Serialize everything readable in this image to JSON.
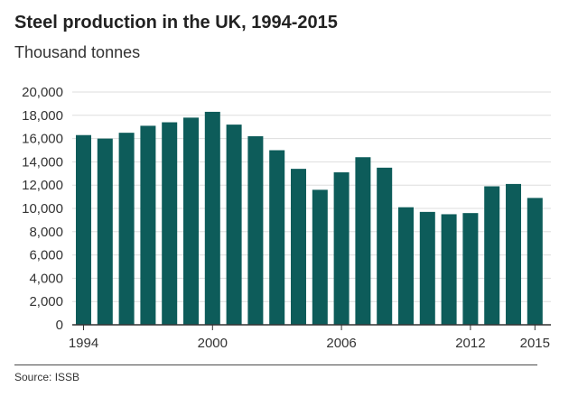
{
  "title": "Steel production in the UK, 1994-2015",
  "subtitle": "Thousand tonnes",
  "source": "Source: ISSB",
  "colors": {
    "bar": "#0d5c5a",
    "grid": "#dddddd",
    "axis": "#333333"
  },
  "chart_data": {
    "type": "bar",
    "title": "Steel production in the UK, 1994-2015",
    "subtitle": "Thousand tonnes",
    "categories": [
      "1994",
      "1995",
      "1996",
      "1997",
      "1998",
      "1999",
      "2000",
      "2001",
      "2002",
      "2003",
      "2004",
      "2005",
      "2006",
      "2007",
      "2008",
      "2009",
      "2010",
      "2011",
      "2012",
      "2013",
      "2014",
      "2015"
    ],
    "values": [
      16300,
      16000,
      16500,
      17100,
      17400,
      17800,
      18300,
      17200,
      16200,
      15000,
      13400,
      11600,
      13100,
      14400,
      13500,
      10100,
      9700,
      9500,
      9600,
      11900,
      12100,
      10900
    ],
    "x_tick_labels": [
      "1994",
      "2000",
      "2006",
      "2012",
      "2015"
    ],
    "y_ticks": [
      0,
      2000,
      4000,
      6000,
      8000,
      10000,
      12000,
      14000,
      16000,
      18000,
      20000
    ],
    "y_tick_labels": [
      "0",
      "2,000",
      "4,000",
      "6,000",
      "8,000",
      "10,000",
      "12,000",
      "14,000",
      "16,000",
      "18,000",
      "20,000"
    ],
    "ylim": [
      0,
      20000
    ],
    "grid": true,
    "legend": "none"
  }
}
